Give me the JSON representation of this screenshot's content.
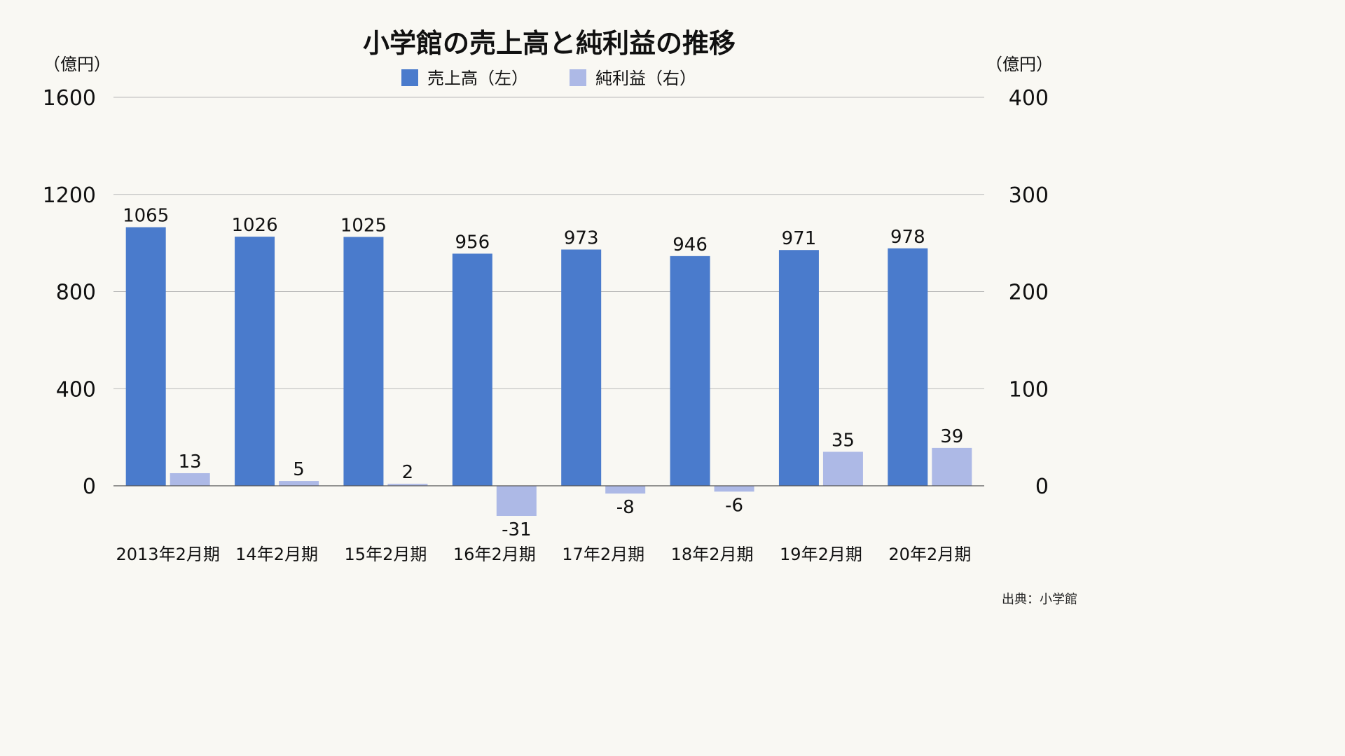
{
  "chart_data": {
    "type": "bar",
    "title": "小学館の売上高と純利益の推移",
    "left_unit": "（億円）",
    "right_unit": "（億円）",
    "categories": [
      "2013年2月期",
      "14年2月期",
      "15年2月期",
      "16年2月期",
      "17年2月期",
      "18年2月期",
      "19年2月期",
      "20年2月期"
    ],
    "series": [
      {
        "name": "売上高（左）",
        "axis": "left",
        "color": "#4a7bcc",
        "values": [
          1065,
          1026,
          1025,
          956,
          973,
          946,
          971,
          978
        ]
      },
      {
        "name": "純利益（右）",
        "axis": "right",
        "color": "#adb9e6",
        "values": [
          13,
          5,
          2,
          -31,
          -8,
          -6,
          35,
          39
        ]
      }
    ],
    "left_axis": {
      "ylim": [
        0,
        1600
      ],
      "ticks": [
        0,
        400,
        800,
        1200,
        1600
      ]
    },
    "right_axis": {
      "ylim": [
        0,
        400
      ],
      "ticks": [
        0,
        100,
        200,
        300,
        400
      ]
    },
    "grid": true,
    "legend_position": "top-center",
    "source": "出典：小学館"
  }
}
